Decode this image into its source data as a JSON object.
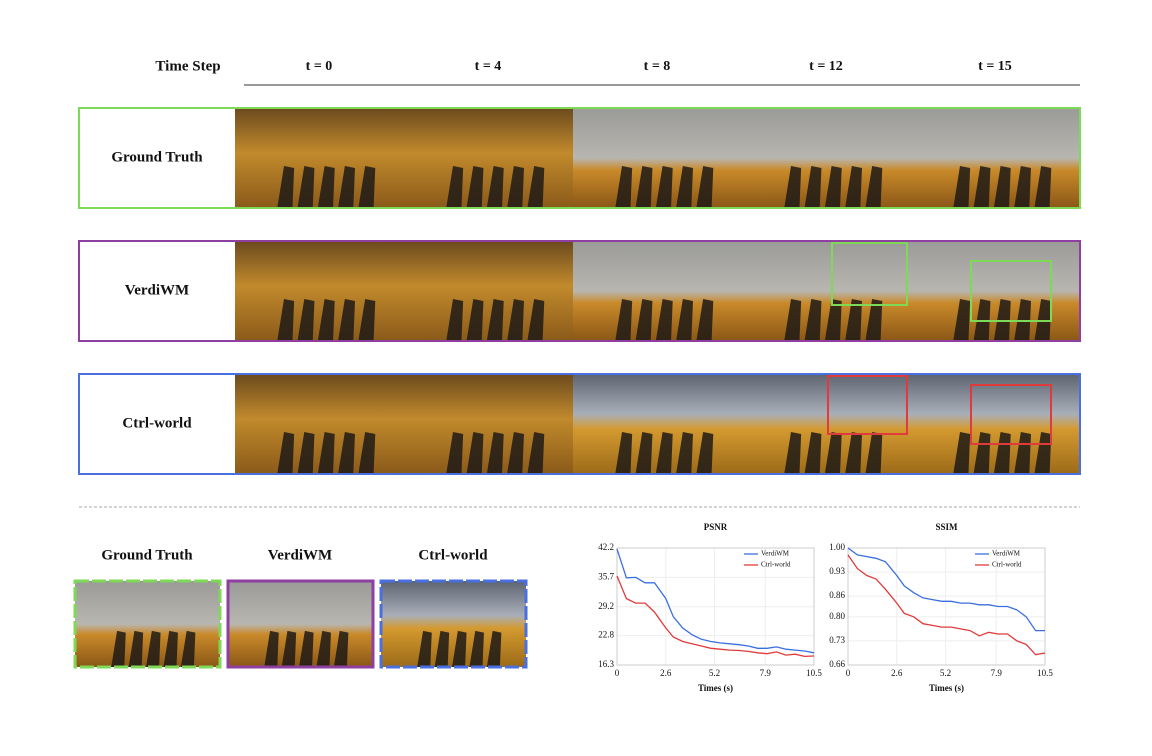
{
  "header": {
    "label": "Time Step",
    "time_steps": [
      "t = 0",
      "t = 4",
      "t = 8",
      "t = 12",
      "t = 15"
    ]
  },
  "rows": [
    {
      "label": "Ground Truth"
    },
    {
      "label": "VerdiWM"
    },
    {
      "label": "Ctrl-world"
    }
  ],
  "crops": {
    "labels": [
      "Ground Truth",
      "VerdiWM",
      "Ctrl-world"
    ]
  },
  "chart_data": [
    {
      "type": "line",
      "title": "PSNR",
      "x_label": "Times (s)",
      "x": [
        0,
        0.5,
        1,
        1.5,
        2,
        2.6,
        3,
        3.5,
        4,
        4.5,
        5,
        5.5,
        6,
        6.5,
        7,
        7.5,
        8,
        8.5,
        9,
        9.5,
        10,
        10.5
      ],
      "series": [
        {
          "name": "VerdiWM",
          "color": "#3b6fe0",
          "values": [
            42,
            35.6,
            35.7,
            34.5,
            34.5,
            31,
            27,
            24.5,
            23,
            22,
            21.5,
            21.2,
            21,
            20.8,
            20.5,
            20,
            20,
            20.3,
            19.8,
            19.6,
            19.4,
            19
          ]
        },
        {
          "name": "Ctrl-world",
          "color": "#e03b3b",
          "values": [
            36,
            31,
            30,
            30,
            28,
            24.5,
            22.5,
            21.5,
            21,
            20.5,
            20,
            19.8,
            19.6,
            19.5,
            19.3,
            19,
            18.8,
            19.2,
            18.5,
            18.7,
            18.2,
            18.3
          ]
        }
      ],
      "xlim": [
        0,
        10.5
      ],
      "xticks": [
        0,
        2.6,
        5.2,
        7.9,
        10.5
      ],
      "ylim": [
        16.3,
        42.2
      ],
      "yticks": [
        16.3,
        22.8,
        29.2,
        35.7,
        42.2
      ],
      "grid": true,
      "legend": "upper right"
    },
    {
      "type": "line",
      "title": "SSIM",
      "x_label": "Times (s)",
      "x": [
        0,
        0.5,
        1,
        1.5,
        2,
        2.6,
        3,
        3.5,
        4,
        4.5,
        5,
        5.5,
        6,
        6.5,
        7,
        7.5,
        8,
        8.5,
        9,
        9.5,
        10,
        10.5
      ],
      "series": [
        {
          "name": "VerdiWM",
          "color": "#3b6fe0",
          "values": [
            1,
            0.98,
            0.975,
            0.97,
            0.96,
            0.92,
            0.89,
            0.87,
            0.855,
            0.85,
            0.845,
            0.845,
            0.84,
            0.84,
            0.835,
            0.835,
            0.83,
            0.83,
            0.82,
            0.8,
            0.76,
            0.76
          ]
        },
        {
          "name": "Ctrl-world",
          "color": "#e03b3b",
          "values": [
            0.98,
            0.94,
            0.92,
            0.91,
            0.88,
            0.84,
            0.81,
            0.8,
            0.78,
            0.775,
            0.77,
            0.77,
            0.765,
            0.76,
            0.745,
            0.755,
            0.75,
            0.75,
            0.73,
            0.72,
            0.69,
            0.695
          ]
        }
      ],
      "xlim": [
        0,
        10.5
      ],
      "xticks": [
        0,
        2.6,
        5.2,
        7.9,
        10.5
      ],
      "ylim": [
        0.66,
        1
      ],
      "yticks": [
        0.66,
        0.73,
        {
          "value": 0.8,
          "label": "0.80"
        },
        0.86,
        0.93,
        {
          "value": 1,
          "label": "1.00"
        }
      ],
      "grid": true,
      "legend": "upper right"
    }
  ]
}
